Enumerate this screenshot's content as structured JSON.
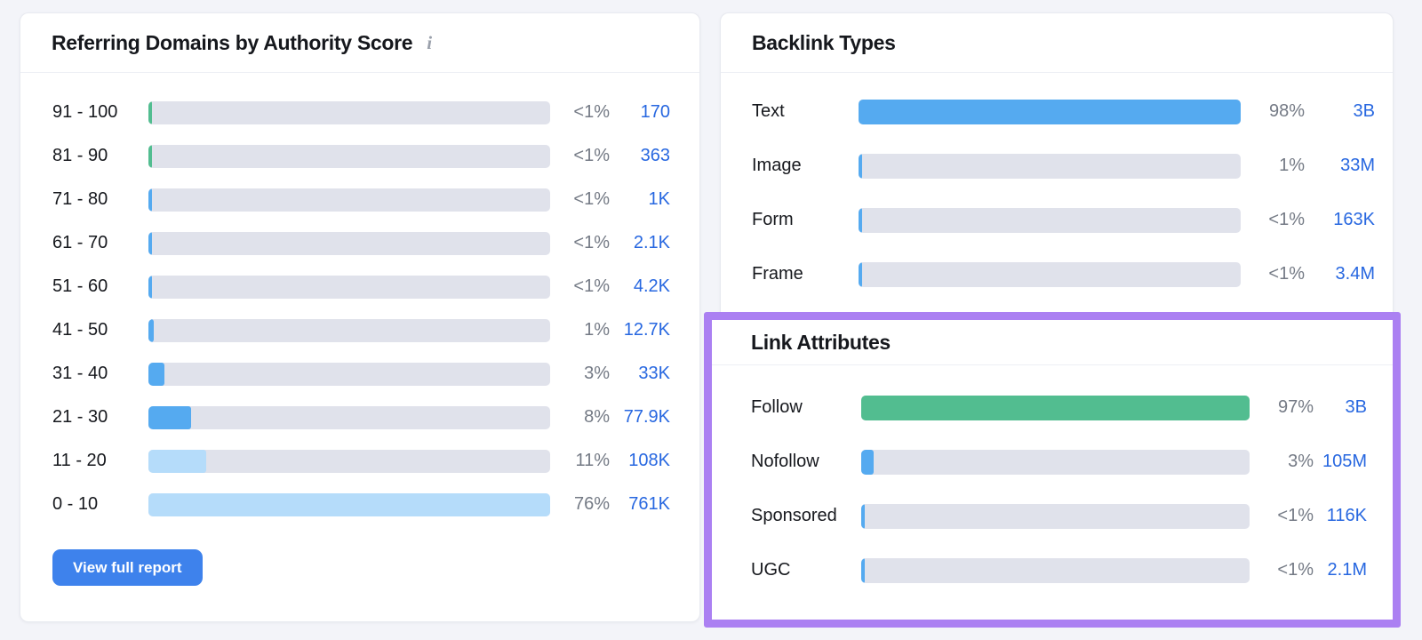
{
  "colors": {
    "green": "#52bd90",
    "blue": "#55aaf0",
    "lightblue": "#b5dcfa",
    "highlight_purple": "#ab80f2",
    "link_blue": "#2767e0",
    "button_blue": "#3e82ec",
    "track_gray": "#e0e2eb"
  },
  "authority_card": {
    "title": "Referring Domains by Authority Score",
    "info_icon": "i",
    "button_label": "View full report",
    "rows": [
      {
        "label": "91 - 100",
        "pct_label": "<1%",
        "pct": 0.5,
        "value": "170",
        "color": "green"
      },
      {
        "label": "81 - 90",
        "pct_label": "<1%",
        "pct": 0.5,
        "value": "363",
        "color": "green"
      },
      {
        "label": "71 - 80",
        "pct_label": "<1%",
        "pct": 0.5,
        "value": "1K",
        "color": "blue"
      },
      {
        "label": "61 - 70",
        "pct_label": "<1%",
        "pct": 0.5,
        "value": "2.1K",
        "color": "blue"
      },
      {
        "label": "51 - 60",
        "pct_label": "<1%",
        "pct": 0.5,
        "value": "4.2K",
        "color": "blue"
      },
      {
        "label": "41 - 50",
        "pct_label": "1%",
        "pct": 1,
        "value": "12.7K",
        "color": "blue"
      },
      {
        "label": "31 - 40",
        "pct_label": "3%",
        "pct": 3,
        "value": "33K",
        "color": "blue"
      },
      {
        "label": "21 - 30",
        "pct_label": "8%",
        "pct": 8,
        "value": "77.9K",
        "color": "blue"
      },
      {
        "label": "11 - 20",
        "pct_label": "11%",
        "pct": 11,
        "value": "108K",
        "color": "lightblue"
      },
      {
        "label": "0 - 10",
        "pct_label": "76%",
        "pct": 76,
        "value": "761K",
        "color": "lightblue"
      }
    ]
  },
  "backlink_types_card": {
    "title": "Backlink Types",
    "rows": [
      {
        "label": "Text",
        "pct_label": "98%",
        "pct": 98,
        "value": "3B",
        "color": "blue"
      },
      {
        "label": "Image",
        "pct_label": "1%",
        "pct": 1,
        "value": "33M",
        "color": "blue"
      },
      {
        "label": "Form",
        "pct_label": "<1%",
        "pct": 0.5,
        "value": "163K",
        "color": "blue"
      },
      {
        "label": "Frame",
        "pct_label": "<1%",
        "pct": 0.5,
        "value": "3.4M",
        "color": "blue"
      }
    ]
  },
  "link_attributes_section": {
    "title": "Link Attributes",
    "rows": [
      {
        "label": "Follow",
        "pct_label": "97%",
        "pct": 97,
        "value": "3B",
        "color": "green"
      },
      {
        "label": "Nofollow",
        "pct_label": "3%",
        "pct": 3,
        "value": "105M",
        "color": "blue"
      },
      {
        "label": "Sponsored",
        "pct_label": "<1%",
        "pct": 0.5,
        "value": "116K",
        "color": "blue"
      },
      {
        "label": "UGC",
        "pct_label": "<1%",
        "pct": 0.5,
        "value": "2.1M",
        "color": "blue"
      }
    ]
  },
  "chart_data": [
    {
      "type": "bar",
      "orientation": "horizontal",
      "title": "Referring Domains by Authority Score",
      "categories": [
        "91 - 100",
        "81 - 90",
        "71 - 80",
        "61 - 70",
        "51 - 60",
        "41 - 50",
        "31 - 40",
        "21 - 30",
        "11 - 20",
        "0 - 10"
      ],
      "values_pct": [
        0.5,
        0.5,
        0.5,
        0.5,
        0.5,
        1,
        3,
        8,
        11,
        76
      ],
      "value_labels": [
        "<1%",
        "<1%",
        "<1%",
        "<1%",
        "<1%",
        "1%",
        "3%",
        "8%",
        "11%",
        "76%"
      ],
      "counts": [
        "170",
        "363",
        "1K",
        "2.1K",
        "4.2K",
        "12.7K",
        "33K",
        "77.9K",
        "108K",
        "761K"
      ],
      "xlim": [
        0,
        76
      ],
      "grid": false,
      "legend": false
    },
    {
      "type": "bar",
      "orientation": "horizontal",
      "title": "Backlink Types",
      "categories": [
        "Text",
        "Image",
        "Form",
        "Frame"
      ],
      "values_pct": [
        98,
        1,
        0.5,
        0.5
      ],
      "value_labels": [
        "98%",
        "1%",
        "<1%",
        "<1%"
      ],
      "counts": [
        "3B",
        "33M",
        "163K",
        "3.4M"
      ],
      "xlim": [
        0,
        98
      ],
      "grid": false,
      "legend": false
    },
    {
      "type": "bar",
      "orientation": "horizontal",
      "title": "Link Attributes",
      "categories": [
        "Follow",
        "Nofollow",
        "Sponsored",
        "UGC"
      ],
      "values_pct": [
        97,
        3,
        0.5,
        0.5
      ],
      "value_labels": [
        "97%",
        "3%",
        "<1%",
        "<1%"
      ],
      "counts": [
        "3B",
        "105M",
        "116K",
        "2.1M"
      ],
      "xlim": [
        0,
        97
      ],
      "grid": false,
      "legend": false
    }
  ]
}
